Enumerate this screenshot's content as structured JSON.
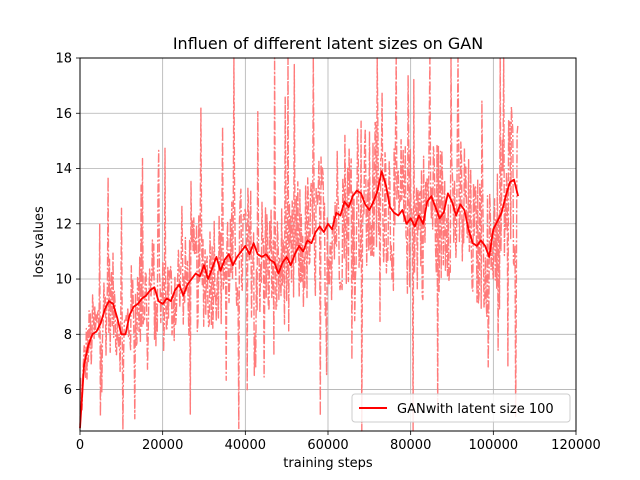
{
  "chart_data": {
    "type": "line",
    "title": "Influen of different latent sizes on GAN",
    "xlabel": "training steps",
    "ylabel": "loss values",
    "xlim": [
      0,
      120000
    ],
    "ylim": [
      4.5,
      18
    ],
    "xticks": [
      0,
      20000,
      40000,
      60000,
      80000,
      100000,
      120000
    ],
    "yticks": [
      6,
      8,
      10,
      12,
      14,
      16,
      18
    ],
    "grid": true,
    "legend_position": "lower-right",
    "series": [
      {
        "name": "GANwith latent size 100",
        "color": "#ff0000",
        "style": "solid",
        "x": [
          0,
          1000,
          2000,
          3000,
          4000,
          5000,
          6000,
          7000,
          8000,
          9000,
          10000,
          11000,
          12000,
          13000,
          14000,
          15000,
          16000,
          17000,
          18000,
          19000,
          20000,
          21000,
          22000,
          23000,
          24000,
          25000,
          26000,
          27000,
          28000,
          29000,
          30000,
          31000,
          32000,
          33000,
          34000,
          35000,
          36000,
          37000,
          38000,
          39000,
          40000,
          41000,
          42000,
          43000,
          44000,
          45000,
          46000,
          47000,
          48000,
          49000,
          50000,
          51000,
          52000,
          53000,
          54000,
          55000,
          56000,
          57000,
          58000,
          59000,
          60000,
          61000,
          62000,
          63000,
          64000,
          65000,
          66000,
          67000,
          68000,
          69000,
          70000,
          71000,
          72000,
          73000,
          74000,
          75000,
          76000,
          77000,
          78000,
          79000,
          80000,
          81000,
          82000,
          83000,
          84000,
          85000,
          86000,
          87000,
          88000,
          89000,
          90000,
          91000,
          92000,
          93000,
          94000,
          95000,
          96000,
          97000,
          98000,
          99000,
          100000,
          101000,
          102000,
          103000,
          104000,
          105000,
          106000
        ],
        "values": [
          4.6,
          6.9,
          7.6,
          8.0,
          8.1,
          8.4,
          8.9,
          9.2,
          9.1,
          8.6,
          8.0,
          8.0,
          8.7,
          9.0,
          9.1,
          9.3,
          9.4,
          9.6,
          9.7,
          9.2,
          9.1,
          9.3,
          9.2,
          9.6,
          9.8,
          9.4,
          9.8,
          10.0,
          10.2,
          10.1,
          10.5,
          10.0,
          10.4,
          10.8,
          10.3,
          10.7,
          10.9,
          10.5,
          10.8,
          11.0,
          11.2,
          10.9,
          11.3,
          10.9,
          10.8,
          10.9,
          10.7,
          10.6,
          10.2,
          10.6,
          10.8,
          10.5,
          10.9,
          11.2,
          11.0,
          11.4,
          11.3,
          11.7,
          11.9,
          11.7,
          12.0,
          11.8,
          12.4,
          12.3,
          12.8,
          12.6,
          13.0,
          13.2,
          13.1,
          12.7,
          12.5,
          12.8,
          13.2,
          13.9,
          13.4,
          12.6,
          12.4,
          12.3,
          12.5,
          12.0,
          12.2,
          11.9,
          12.3,
          12.0,
          12.8,
          13.0,
          12.6,
          12.2,
          12.4,
          13.1,
          12.8,
          12.3,
          12.7,
          12.5,
          11.8,
          11.3,
          11.2,
          11.4,
          11.2,
          10.8,
          11.8,
          12.1,
          12.4,
          13.0,
          13.5,
          13.6,
          13.0
        ]
      }
    ]
  }
}
